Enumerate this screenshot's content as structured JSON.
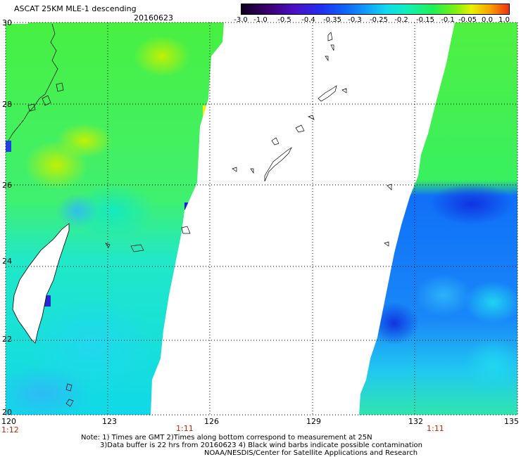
{
  "header": {
    "product": "ASCAT 25KM MLE-1 descending",
    "date": "20160623"
  },
  "colorbar": {
    "labels": [
      "-3.0",
      "-1.0",
      "-0.5",
      "-0.4",
      "-0.35",
      "-0.3",
      "-0.25",
      "-0.2",
      "-0.15",
      "-0.1",
      "-0.05",
      "0.0",
      "1.0"
    ],
    "colors": [
      "#100020",
      "#3a0070",
      "#4a10c8",
      "#2030f0",
      "#1060f8",
      "#1098f8",
      "#10d8f0",
      "#10f0b8",
      "#20f050",
      "#80f010",
      "#e8f000",
      "#f8a000",
      "#f03010"
    ]
  },
  "axes": {
    "lat_labels": [
      "30",
      "28",
      "26",
      "24",
      "22",
      "20"
    ],
    "lon_labels": [
      "120",
      "123",
      "126",
      "129",
      "132",
      "135"
    ]
  },
  "times": [
    "1:12",
    "1:11",
    "1:11"
  ],
  "note": {
    "line1": "Note: 1) Times are GMT 2)Times along bottom correspond to measurement at 25N",
    "line2": "3)Data buffer is 22 hrs from 20160623 4) Black wind barbs indicate possible contamination",
    "line3": "NOAA/NESDIS/Center for Satellite Applications and Research"
  },
  "map": {
    "lat_range": [
      20,
      30
    ],
    "lon_range": [
      120,
      135
    ],
    "gridlines": "dotted",
    "swaths": [
      {
        "name": "west-swath",
        "lon_range": [
          120.0,
          126.0
        ]
      },
      {
        "name": "east-swath",
        "lon_range": [
          130.3,
          135.0
        ]
      }
    ]
  }
}
